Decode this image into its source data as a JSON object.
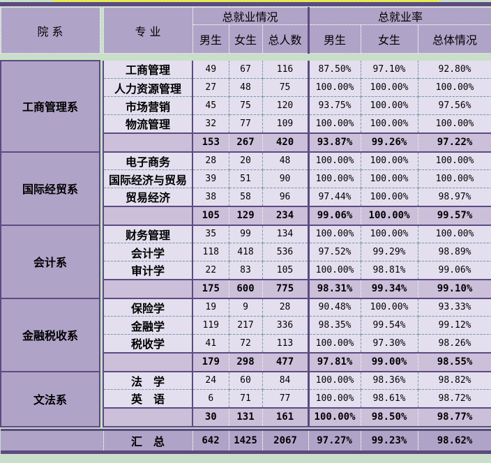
{
  "header": {
    "dept": "院 系",
    "major": "专 业",
    "group_count": "总就业情况",
    "group_rate": "总就业率",
    "male": "男生",
    "female": "女生",
    "total": "总人数",
    "rate_male": "男生",
    "rate_female": "女生",
    "rate_total": "总体情况"
  },
  "departments": [
    {
      "name": "工商管理系",
      "majors": [
        {
          "name": "工商管理",
          "m": "49",
          "f": "67",
          "t": "116",
          "rm": "87.50%",
          "rf": "97.10%",
          "rt": "92.80%"
        },
        {
          "name": "人力资源管理",
          "m": "27",
          "f": "48",
          "t": "75",
          "rm": "100.00%",
          "rf": "100.00%",
          "rt": "100.00%"
        },
        {
          "name": "市场营销",
          "m": "45",
          "f": "75",
          "t": "120",
          "rm": "93.75%",
          "rf": "100.00%",
          "rt": "97.56%"
        },
        {
          "name": "物流管理",
          "m": "32",
          "f": "77",
          "t": "109",
          "rm": "100.00%",
          "rf": "100.00%",
          "rt": "100.00%"
        }
      ],
      "subtotal": {
        "m": "153",
        "f": "267",
        "t": "420",
        "rm": "93.87%",
        "rf": "99.26%",
        "rt": "97.22%"
      }
    },
    {
      "name": "国际经贸系",
      "majors": [
        {
          "name": "电子商务",
          "m": "28",
          "f": "20",
          "t": "48",
          "rm": "100.00%",
          "rf": "100.00%",
          "rt": "100.00%"
        },
        {
          "name": "国际经济与贸易",
          "m": "39",
          "f": "51",
          "t": "90",
          "rm": "100.00%",
          "rf": "100.00%",
          "rt": "100.00%"
        },
        {
          "name": "贸易经济",
          "m": "38",
          "f": "58",
          "t": "96",
          "rm": "97.44%",
          "rf": "100.00%",
          "rt": "98.97%"
        }
      ],
      "subtotal": {
        "m": "105",
        "f": "129",
        "t": "234",
        "rm": "99.06%",
        "rf": "100.00%",
        "rt": "99.57%"
      }
    },
    {
      "name": "会计系",
      "majors": [
        {
          "name": "财务管理",
          "m": "35",
          "f": "99",
          "t": "134",
          "rm": "100.00%",
          "rf": "100.00%",
          "rt": "100.00%"
        },
        {
          "name": "会计学",
          "m": "118",
          "f": "418",
          "t": "536",
          "rm": "97.52%",
          "rf": "99.29%",
          "rt": "98.89%"
        },
        {
          "name": "审计学",
          "m": "22",
          "f": "83",
          "t": "105",
          "rm": "100.00%",
          "rf": "98.81%",
          "rt": "99.06%"
        }
      ],
      "subtotal": {
        "m": "175",
        "f": "600",
        "t": "775",
        "rm": "98.31%",
        "rf": "99.34%",
        "rt": "99.10%"
      }
    },
    {
      "name": "金融税收系",
      "majors": [
        {
          "name": "保险学",
          "m": "19",
          "f": "9",
          "t": "28",
          "rm": "90.48%",
          "rf": "100.00%",
          "rt": "93.33%"
        },
        {
          "name": "金融学",
          "m": "119",
          "f": "217",
          "t": "336",
          "rm": "98.35%",
          "rf": "99.54%",
          "rt": "99.12%"
        },
        {
          "name": "税收学",
          "m": "41",
          "f": "72",
          "t": "113",
          "rm": "100.00%",
          "rf": "97.30%",
          "rt": "98.26%"
        }
      ],
      "subtotal": {
        "m": "179",
        "f": "298",
        "t": "477",
        "rm": "97.81%",
        "rf": "99.00%",
        "rt": "98.55%"
      }
    },
    {
      "name": "文法系",
      "majors": [
        {
          "name": "法　学",
          "m": "24",
          "f": "60",
          "t": "84",
          "rm": "100.00%",
          "rf": "98.36%",
          "rt": "98.82%"
        },
        {
          "name": "英　语",
          "m": "6",
          "f": "71",
          "t": "77",
          "rm": "100.00%",
          "rf": "98.61%",
          "rt": "98.72%"
        }
      ],
      "subtotal": {
        "m": "30",
        "f": "131",
        "t": "161",
        "rm": "100.00%",
        "rf": "98.50%",
        "rt": "98.77%"
      }
    }
  ],
  "grand_total": {
    "label": "汇　总",
    "m": "642",
    "f": "1425",
    "t": "2067",
    "rm": "97.27%",
    "rf": "99.23%",
    "rt": "98.62%"
  },
  "colors": {
    "header": "#b0a3c8",
    "cell": "#e4dfee",
    "subtotal": "#cbbfda",
    "border": "#5c4a80",
    "background": "#c9dfc9"
  }
}
